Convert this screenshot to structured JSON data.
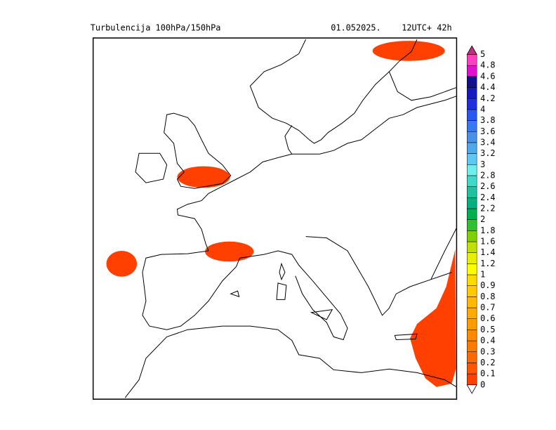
{
  "header": {
    "title": "Turbulencija 100hPa/150hPa",
    "date": "01.052025.",
    "run": "12UTC+ 42h"
  },
  "legend": {
    "labels": [
      "0",
      "0.1",
      "0.2",
      "0.3",
      "0.4",
      "0.5",
      "0.6",
      "0.7",
      "0.8",
      "0.9",
      "1",
      "1.2",
      "1.4",
      "1.6",
      "1.8",
      "2",
      "2.2",
      "2.4",
      "2.6",
      "2.8",
      "3",
      "3.2",
      "3.4",
      "3.6",
      "3.8",
      "4",
      "4.2",
      "4.4",
      "4.6",
      "4.8",
      "5"
    ],
    "colors": [
      "#ff4000",
      "#ff5500",
      "#ff6a00",
      "#ff7a00",
      "#ff8a00",
      "#ff9a00",
      "#ffaa00",
      "#ffba00",
      "#ffca00",
      "#ffda00",
      "#ffff00",
      "#e8f000",
      "#c0e000",
      "#80d000",
      "#30c030",
      "#00b050",
      "#00b080",
      "#20c0a0",
      "#40d8c8",
      "#70eeee",
      "#60c8f0",
      "#50a8e8",
      "#4890e8",
      "#3878f0",
      "#2858f0",
      "#2030e0",
      "#1818c0",
      "#101090",
      "#e010d0",
      "#ff40c0"
    ],
    "under_color": "#ffffff",
    "over_color": "#c03080"
  }
}
